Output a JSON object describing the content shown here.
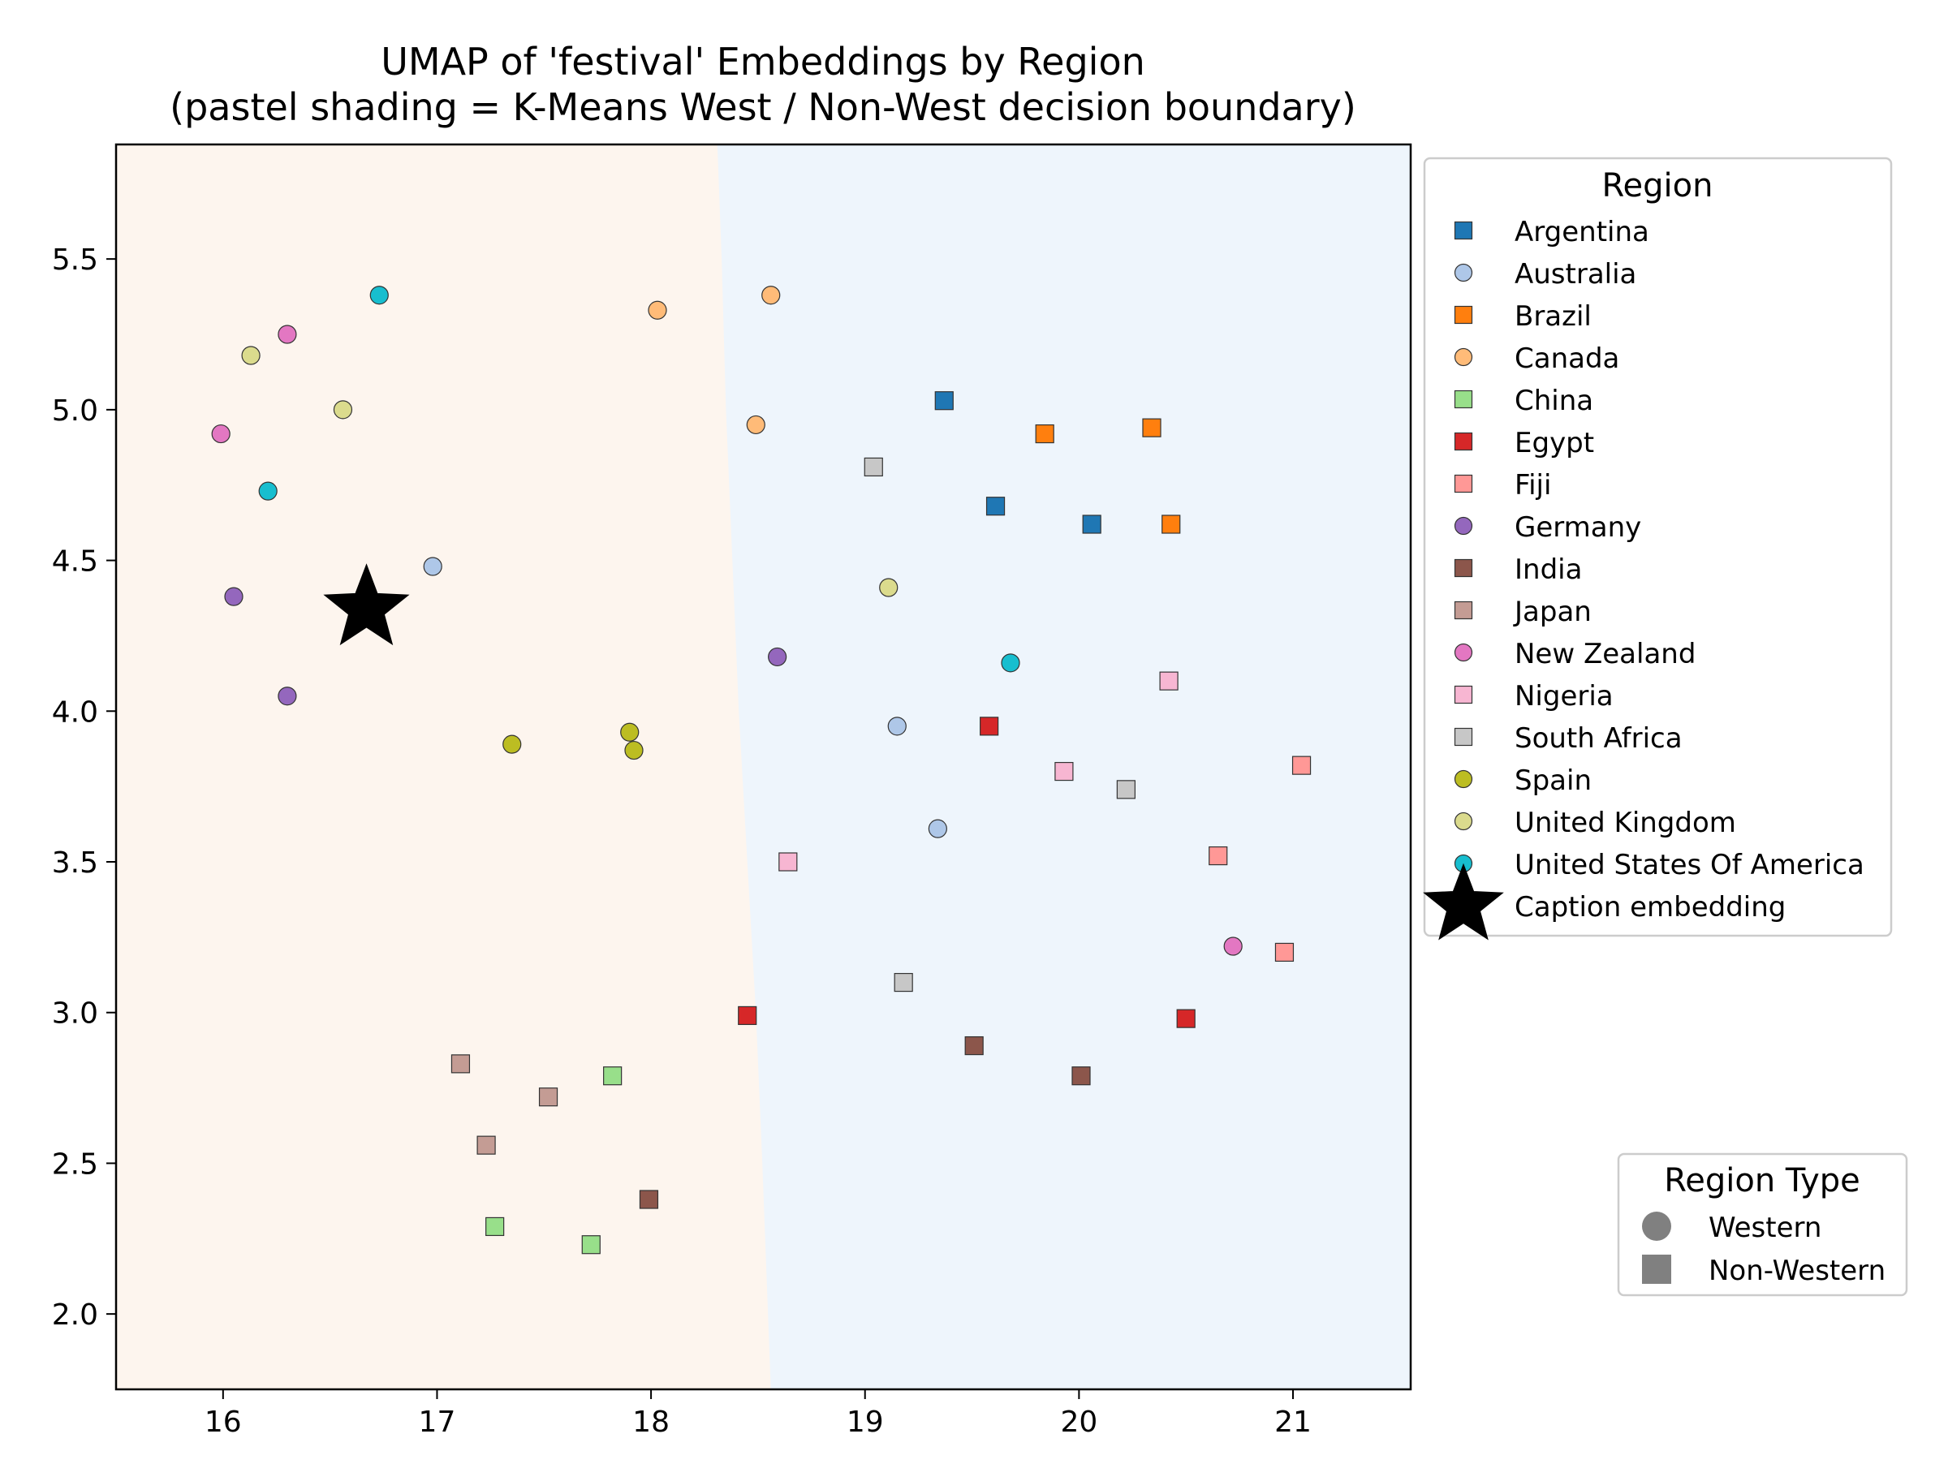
{
  "chart_data": {
    "type": "scatter",
    "title": [
      "UMAP of 'festival' Embeddings by Region",
      "(pastel shading = K-Means West / Non-West decision boundary)"
    ],
    "xlabel": "",
    "ylabel": "",
    "xlim": [
      15.5,
      21.55
    ],
    "ylim": [
      1.75,
      5.88
    ],
    "xticks": [
      16,
      17,
      18,
      19,
      20,
      21
    ],
    "yticks": [
      2.0,
      2.5,
      3.0,
      3.5,
      4.0,
      4.5,
      5.0,
      5.5
    ],
    "grid": false,
    "background_regions": {
      "western_color": "#fdf5ee",
      "non_western_color": "#eef5fc",
      "boundary": [
        [
          18.31,
          5.88
        ],
        [
          18.33,
          5.5
        ],
        [
          18.35,
          5.0
        ],
        [
          18.38,
          4.5
        ],
        [
          18.41,
          4.0
        ],
        [
          18.45,
          3.5
        ],
        [
          18.49,
          3.0
        ],
        [
          18.52,
          2.5
        ],
        [
          18.56,
          1.75
        ]
      ]
    },
    "legend_region": {
      "title": "Region",
      "placement": "outside-right-top",
      "entries": [
        {
          "name": "Argentina",
          "color": "#1f77b4",
          "marker": "square"
        },
        {
          "name": "Australia",
          "color": "#aec7e8",
          "marker": "circle"
        },
        {
          "name": "Brazil",
          "color": "#ff7f0e",
          "marker": "square"
        },
        {
          "name": "Canada",
          "color": "#ffbb78",
          "marker": "circle"
        },
        {
          "name": "China",
          "color": "#98df8a",
          "marker": "square"
        },
        {
          "name": "Egypt",
          "color": "#d62728",
          "marker": "square"
        },
        {
          "name": "Fiji",
          "color": "#ff9896",
          "marker": "square"
        },
        {
          "name": "Germany",
          "color": "#9467bd",
          "marker": "circle"
        },
        {
          "name": "India",
          "color": "#8c564b",
          "marker": "square"
        },
        {
          "name": "Japan",
          "color": "#c49c94",
          "marker": "square"
        },
        {
          "name": "New Zealand",
          "color": "#e377c2",
          "marker": "circle"
        },
        {
          "name": "Nigeria",
          "color": "#f7b6d2",
          "marker": "square"
        },
        {
          "name": "South Africa",
          "color": "#c7c7c7",
          "marker": "square"
        },
        {
          "name": "Spain",
          "color": "#bcbd22",
          "marker": "circle"
        },
        {
          "name": "United Kingdom",
          "color": "#dbdb8d",
          "marker": "circle"
        },
        {
          "name": "United States Of America",
          "color": "#17becf",
          "marker": "circle"
        },
        {
          "name": "Caption embedding",
          "color": "#000000",
          "marker": "star"
        }
      ]
    },
    "legend_type": {
      "title": "Region Type",
      "placement": "outside-right-bottom",
      "entries": [
        {
          "name": "Western",
          "color": "#808080",
          "marker": "circle"
        },
        {
          "name": "Non-Western",
          "color": "#808080",
          "marker": "square"
        }
      ]
    },
    "series": [
      {
        "name": "Argentina",
        "points": [
          [
            19.37,
            5.03
          ],
          [
            19.61,
            4.68
          ],
          [
            20.06,
            4.62
          ]
        ]
      },
      {
        "name": "Australia",
        "points": [
          [
            16.98,
            4.48
          ],
          [
            19.15,
            3.95
          ],
          [
            19.34,
            3.61
          ]
        ]
      },
      {
        "name": "Brazil",
        "points": [
          [
            19.84,
            4.92
          ],
          [
            20.34,
            4.94
          ],
          [
            20.43,
            4.62
          ]
        ]
      },
      {
        "name": "Canada",
        "points": [
          [
            18.03,
            5.33
          ],
          [
            18.56,
            5.38
          ],
          [
            18.49,
            4.95
          ]
        ]
      },
      {
        "name": "China",
        "points": [
          [
            17.82,
            2.79
          ],
          [
            17.27,
            2.29
          ],
          [
            17.72,
            2.23
          ]
        ]
      },
      {
        "name": "Egypt",
        "points": [
          [
            19.58,
            3.95
          ],
          [
            18.45,
            2.99
          ],
          [
            20.5,
            2.98
          ]
        ]
      },
      {
        "name": "Fiji",
        "points": [
          [
            21.04,
            3.82
          ],
          [
            20.65,
            3.52
          ],
          [
            20.96,
            3.2
          ]
        ]
      },
      {
        "name": "Germany",
        "points": [
          [
            16.05,
            4.38
          ],
          [
            16.3,
            4.05
          ],
          [
            18.59,
            4.18
          ]
        ]
      },
      {
        "name": "India",
        "points": [
          [
            19.51,
            2.89
          ],
          [
            20.01,
            2.79
          ],
          [
            17.99,
            2.38
          ]
        ]
      },
      {
        "name": "Japan",
        "points": [
          [
            17.11,
            2.83
          ],
          [
            17.52,
            2.72
          ],
          [
            17.23,
            2.56
          ]
        ]
      },
      {
        "name": "New Zealand",
        "points": [
          [
            16.3,
            5.25
          ],
          [
            15.99,
            4.92
          ],
          [
            20.72,
            3.22
          ]
        ]
      },
      {
        "name": "Nigeria",
        "points": [
          [
            20.42,
            4.1
          ],
          [
            19.93,
            3.8
          ],
          [
            18.64,
            3.5
          ]
        ]
      },
      {
        "name": "South Africa",
        "points": [
          [
            19.04,
            4.81
          ],
          [
            20.22,
            3.74
          ],
          [
            19.18,
            3.1
          ]
        ]
      },
      {
        "name": "Spain",
        "points": [
          [
            17.35,
            3.89
          ],
          [
            17.9,
            3.93
          ],
          [
            17.92,
            3.87
          ]
        ]
      },
      {
        "name": "United Kingdom",
        "points": [
          [
            16.13,
            5.18
          ],
          [
            16.56,
            5.0
          ],
          [
            19.11,
            4.41
          ]
        ]
      },
      {
        "name": "United States Of America",
        "points": [
          [
            16.73,
            5.38
          ],
          [
            16.21,
            4.73
          ],
          [
            19.68,
            4.16
          ]
        ]
      },
      {
        "name": "Caption embedding",
        "points": [
          [
            16.67,
            4.34
          ]
        ]
      }
    ]
  }
}
